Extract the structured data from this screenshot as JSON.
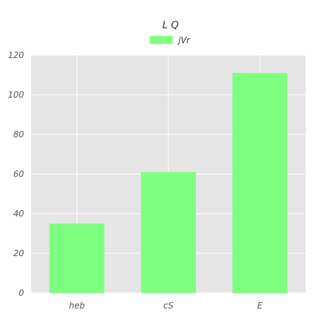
{
  "chart_data": {
    "type": "bar",
    "title": "L Q",
    "xlabel": "",
    "ylabel": "",
    "categories": [
      "heb",
      "cS",
      "E"
    ],
    "series": [
      {
        "name": "jVr",
        "values": [
          35,
          61,
          111
        ],
        "color": "#7fff7f"
      }
    ],
    "ylim": [
      0,
      120
    ],
    "yticks": [
      0,
      20,
      40,
      60,
      80,
      100,
      120
    ],
    "grid": true,
    "legend": "top-center",
    "background": "#e5e5e5"
  }
}
